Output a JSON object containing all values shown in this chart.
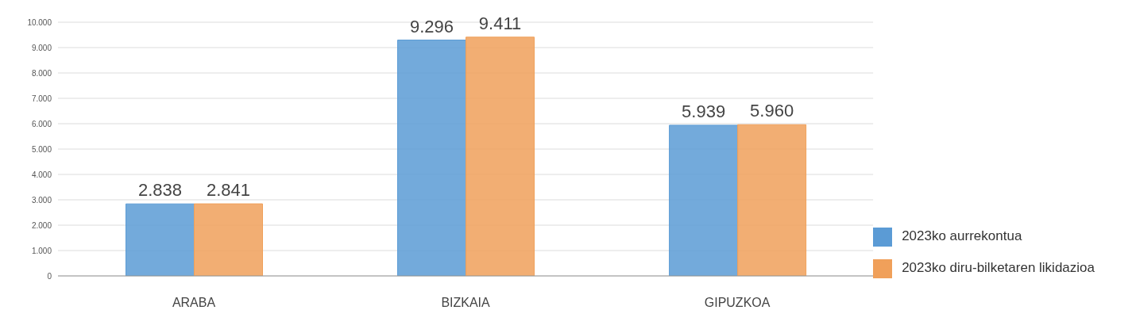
{
  "chart_data": {
    "type": "bar",
    "categories": [
      "ARABA",
      "BIZKAIA",
      "GIPUZKOA"
    ],
    "series": [
      {
        "name": "2023ko aurrekontua",
        "color": "#5b9bd5",
        "values": [
          2838,
          9296,
          5939
        ],
        "value_labels": [
          "2.838",
          "9.296",
          "5.939"
        ]
      },
      {
        "name": "2023ko diru-bilketaren likidazioa",
        "color": "#f0a05a",
        "values": [
          2841,
          9411,
          5960
        ],
        "value_labels": [
          "2.841",
          "9.411",
          "5.960"
        ]
      }
    ],
    "ylim": [
      0,
      10000
    ],
    "yticks": [
      0,
      {
        "value": 1000,
        "label": "1.000"
      },
      {
        "value": 2000,
        "label": "2.000"
      },
      {
        "value": 3000,
        "label": "3.000"
      },
      {
        "value": 4000,
        "label": "4.000"
      },
      {
        "value": 5000,
        "label": "5.000"
      },
      {
        "value": 6000,
        "label": "6.000"
      },
      {
        "value": 7000,
        "label": "7.000"
      },
      {
        "value": 8000,
        "label": "8.000"
      },
      {
        "value": 9000,
        "label": "9.000"
      },
      {
        "value": 10000,
        "label": "10.000"
      }
    ],
    "grid": "y",
    "legend": "bottom right"
  }
}
